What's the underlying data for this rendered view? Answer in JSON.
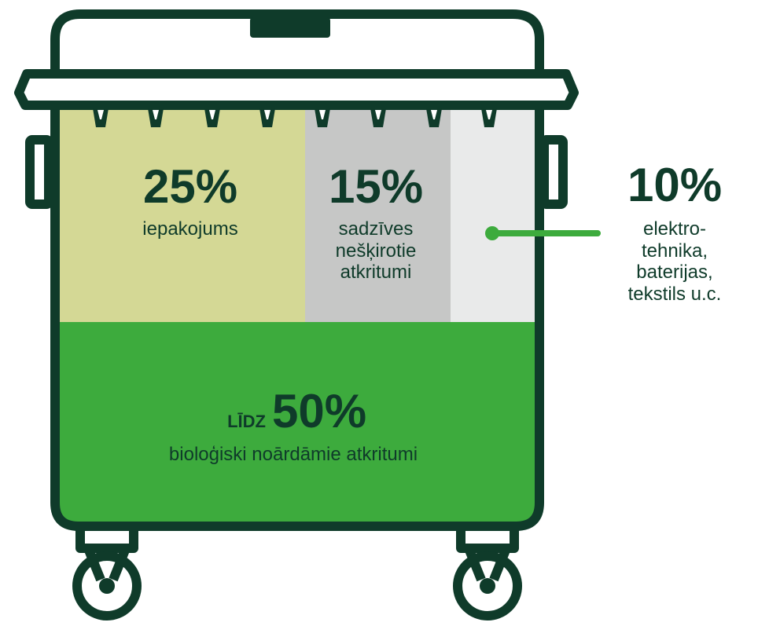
{
  "segments": [
    {
      "percent": "25%",
      "lines": [
        "iepakojums"
      ]
    },
    {
      "percent": "15%",
      "lines": [
        "sadzīves",
        "nešķirotie",
        "atkritumi"
      ]
    },
    {
      "percent": "10%",
      "lines": [
        "elektro-",
        "tehnika,",
        "baterijas,",
        "tekstils u.c."
      ]
    }
  ],
  "bottom": {
    "prefix": "LĪDZ",
    "percent": "50%",
    "label": "bioloģiski noārdāmie atkritumi"
  }
}
